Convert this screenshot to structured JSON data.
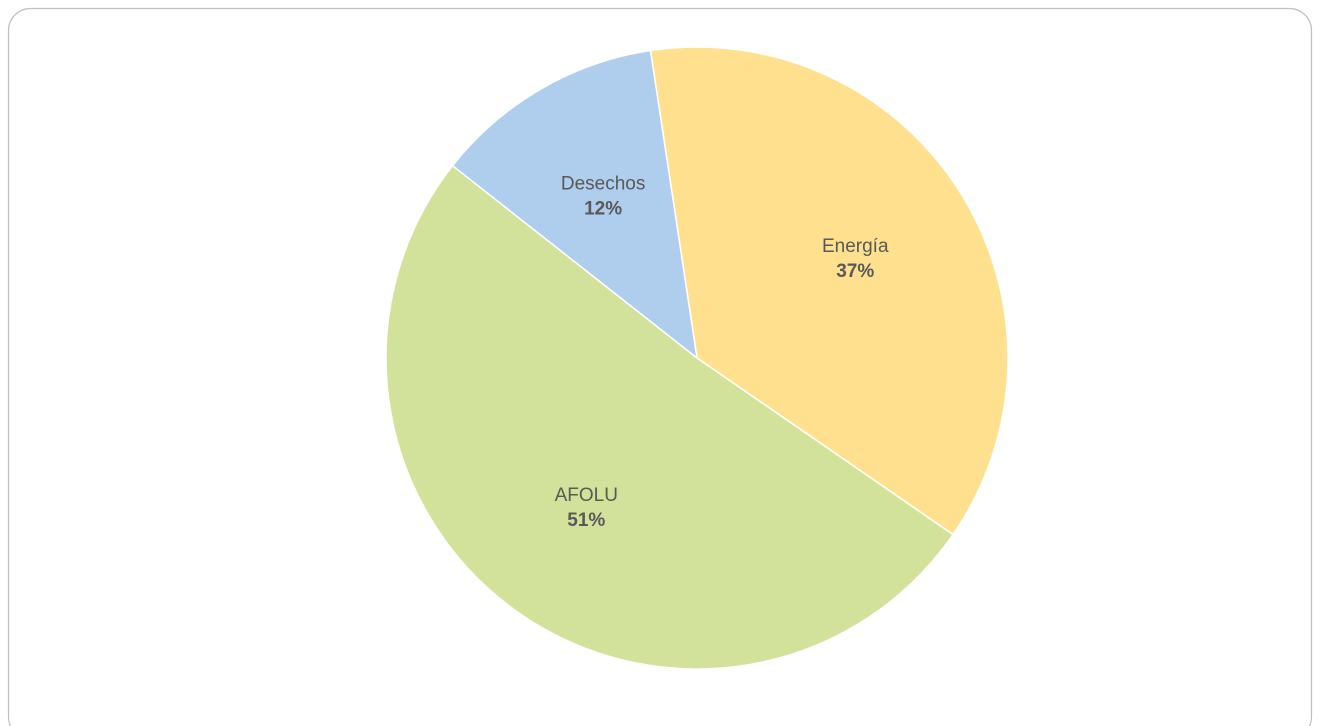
{
  "chart_data": {
    "type": "pie",
    "categories": [
      "Energía",
      "AFOLU",
      "Desechos"
    ],
    "values": [
      37,
      51,
      12
    ],
    "value_labels": [
      "37%",
      "51%",
      "12%"
    ],
    "colors": [
      "#fee08f",
      "#d3e29a",
      "#afcdec"
    ]
  }
}
